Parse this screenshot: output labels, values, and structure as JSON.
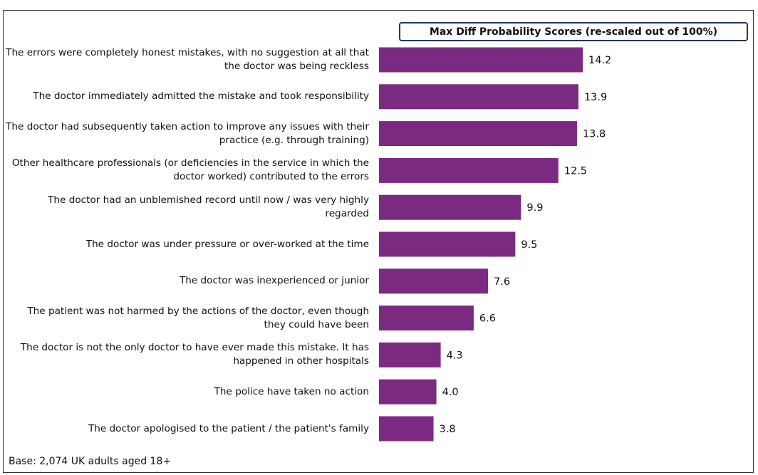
{
  "chart_data": {
    "type": "bar",
    "orientation": "horizontal",
    "legend_title": "Max Diff Probability Scores (re-scaled out of 100%)",
    "categories": [
      "The errors were completely honest mistakes, with no suggestion at all that the doctor was being reckless",
      "The doctor immediately admitted the mistake and took responsibility",
      "The doctor had subsequently taken action to improve any issues with their practice (e.g. through training)",
      "Other healthcare professionals (or deficiencies in the service in which the doctor worked) contributed to the errors",
      "The doctor had an unblemished record until now / was very highly regarded",
      "The doctor was under pressure or over-worked at the time",
      "The doctor was inexperienced or junior",
      "The patient was not harmed by the actions of the doctor, even though they could have been",
      "The doctor is not the only doctor to have ever made this mistake. It has happened in other hospitals",
      "The police have taken no action",
      "The doctor apologised to the patient / the patient's family"
    ],
    "values": [
      14.2,
      13.9,
      13.8,
      12.5,
      9.9,
      9.5,
      7.6,
      6.6,
      4.3,
      4.0,
      3.8
    ],
    "value_labels": [
      "14.2",
      "13.9",
      "13.8",
      "12.5",
      "9.9",
      "9.5",
      "7.6",
      "6.6",
      "4.3",
      "4.0",
      "3.8"
    ],
    "color": "#7b2a82",
    "footnote": "Base: 2,074 UK adults aged 18+"
  }
}
